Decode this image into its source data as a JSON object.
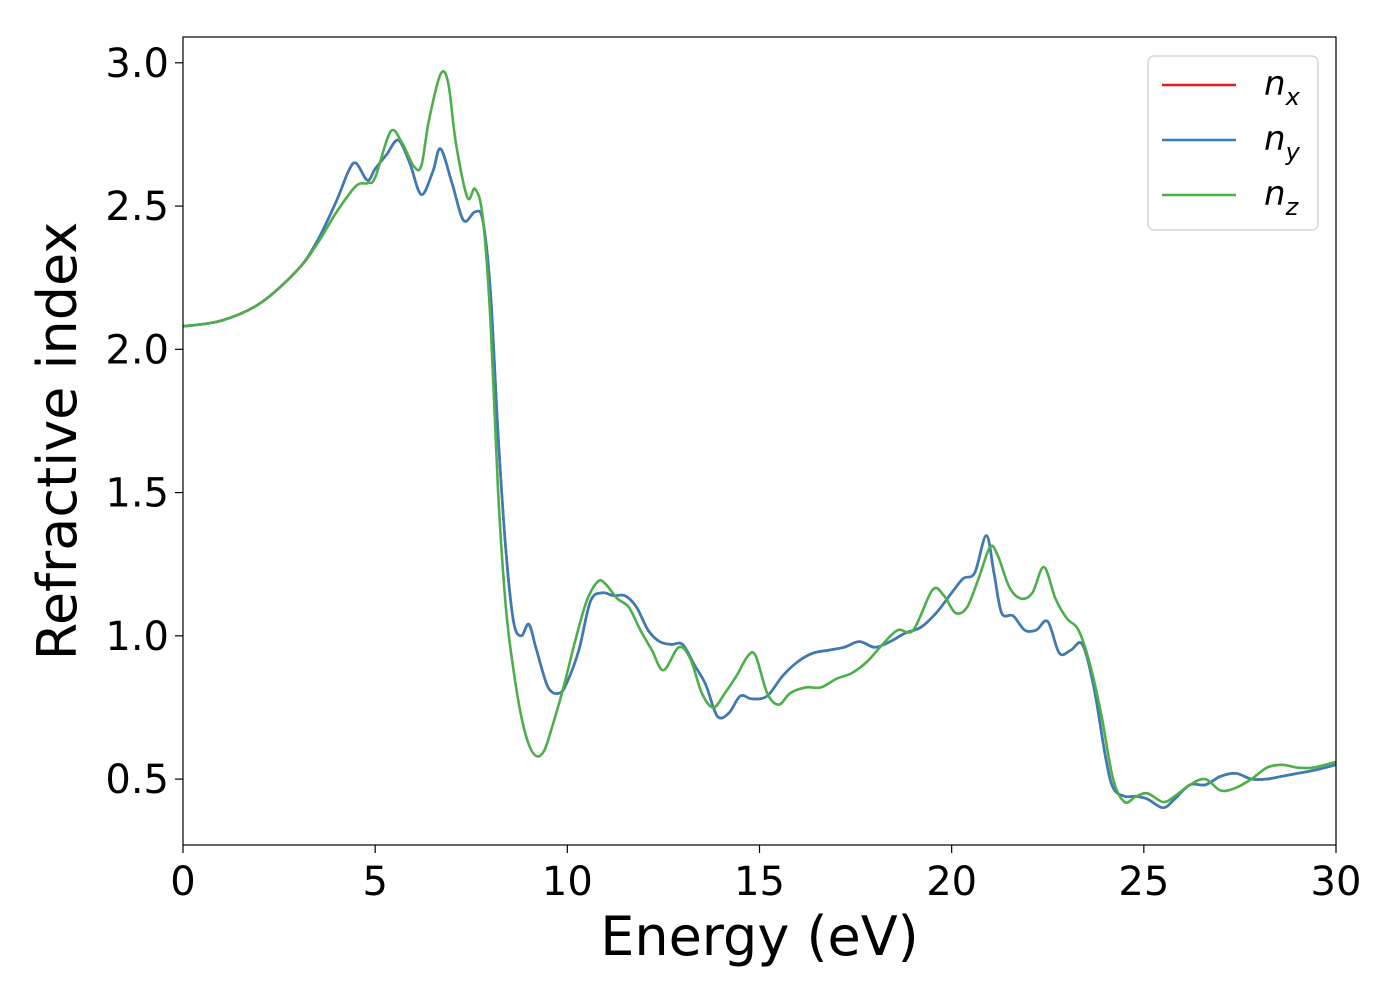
{
  "chart_data": {
    "type": "line",
    "title": "",
    "xlabel": "Energy (eV)",
    "ylabel": "Refractive index",
    "xlim": [
      0,
      30
    ],
    "ylim": [
      0.27,
      3.09
    ],
    "xticks": [
      0,
      5,
      10,
      15,
      20,
      25,
      30
    ],
    "yticks": [
      0.5,
      1.0,
      1.5,
      2.0,
      2.5,
      3.0
    ],
    "xtick_labels": [
      "0",
      "5",
      "10",
      "15",
      "20",
      "25",
      "30"
    ],
    "ytick_labels": [
      "0.5",
      "1.0",
      "1.5",
      "2.0",
      "2.5",
      "3.0"
    ],
    "grid": false,
    "legend_position": "top-right",
    "series": [
      {
        "name": "n_x",
        "legend_base": "n",
        "legend_sub": "x",
        "color": "#e41a1c",
        "x": [
          0,
          1,
          2,
          3,
          3.5,
          4,
          4.3,
          4.5,
          4.8,
          5,
          5.3,
          5.6,
          5.9,
          6.2,
          6.5,
          6.7,
          7,
          7.3,
          7.6,
          7.8,
          8,
          8.2,
          8.4,
          8.6,
          8.8,
          9,
          9.2,
          9.5,
          9.8,
          10,
          10.3,
          10.6,
          10.9,
          11.2,
          11.5,
          11.8,
          12.1,
          12.4,
          12.7,
          13,
          13.3,
          13.6,
          13.9,
          14.2,
          14.5,
          14.8,
          15.2,
          15.6,
          16,
          16.4,
          16.8,
          17.2,
          17.6,
          18,
          18.4,
          18.8,
          19.2,
          19.6,
          20,
          20.3,
          20.6,
          20.9,
          21.1,
          21.3,
          21.6,
          21.9,
          22.2,
          22.5,
          22.8,
          23.1,
          23.4,
          23.7,
          24,
          24.2,
          24.5,
          24.8,
          25.1,
          25.5,
          25.8,
          26.2,
          26.6,
          27,
          27.4,
          27.8,
          28.2,
          28.6,
          29,
          29.4,
          30
        ],
        "y": [
          2.08,
          2.1,
          2.16,
          2.28,
          2.38,
          2.52,
          2.62,
          2.65,
          2.59,
          2.63,
          2.68,
          2.73,
          2.65,
          2.54,
          2.62,
          2.7,
          2.58,
          2.45,
          2.48,
          2.45,
          2.2,
          1.7,
          1.3,
          1.05,
          1.0,
          1.04,
          0.95,
          0.82,
          0.8,
          0.84,
          0.95,
          1.12,
          1.15,
          1.14,
          1.14,
          1.1,
          1.02,
          0.98,
          0.97,
          0.97,
          0.9,
          0.83,
          0.72,
          0.73,
          0.79,
          0.78,
          0.79,
          0.86,
          0.91,
          0.94,
          0.95,
          0.96,
          0.98,
          0.96,
          0.98,
          1.01,
          1.03,
          1.08,
          1.15,
          1.2,
          1.22,
          1.35,
          1.22,
          1.08,
          1.07,
          1.02,
          1.02,
          1.05,
          0.94,
          0.95,
          0.97,
          0.82,
          0.58,
          0.47,
          0.44,
          0.44,
          0.43,
          0.4,
          0.43,
          0.48,
          0.48,
          0.51,
          0.52,
          0.5,
          0.5,
          0.51,
          0.52,
          0.53,
          0.55
        ]
      },
      {
        "name": "n_y",
        "legend_base": "n",
        "legend_sub": "y",
        "color": "#377eb8",
        "x": [
          0,
          1,
          2,
          3,
          3.5,
          4,
          4.3,
          4.5,
          4.8,
          5,
          5.3,
          5.6,
          5.9,
          6.2,
          6.5,
          6.7,
          7,
          7.3,
          7.6,
          7.8,
          8,
          8.2,
          8.4,
          8.6,
          8.8,
          9,
          9.2,
          9.5,
          9.8,
          10,
          10.3,
          10.6,
          10.9,
          11.2,
          11.5,
          11.8,
          12.1,
          12.4,
          12.7,
          13,
          13.3,
          13.6,
          13.9,
          14.2,
          14.5,
          14.8,
          15.2,
          15.6,
          16,
          16.4,
          16.8,
          17.2,
          17.6,
          18,
          18.4,
          18.8,
          19.2,
          19.6,
          20,
          20.3,
          20.6,
          20.9,
          21.1,
          21.3,
          21.6,
          21.9,
          22.2,
          22.5,
          22.8,
          23.1,
          23.4,
          23.7,
          24,
          24.2,
          24.5,
          24.8,
          25.1,
          25.5,
          25.8,
          26.2,
          26.6,
          27,
          27.4,
          27.8,
          28.2,
          28.6,
          29,
          29.4,
          30
        ],
        "y": [
          2.08,
          2.1,
          2.16,
          2.28,
          2.38,
          2.52,
          2.62,
          2.65,
          2.59,
          2.63,
          2.68,
          2.73,
          2.65,
          2.54,
          2.62,
          2.7,
          2.58,
          2.45,
          2.48,
          2.45,
          2.2,
          1.7,
          1.3,
          1.05,
          1.0,
          1.04,
          0.95,
          0.82,
          0.8,
          0.84,
          0.95,
          1.12,
          1.15,
          1.14,
          1.14,
          1.1,
          1.02,
          0.98,
          0.97,
          0.97,
          0.9,
          0.83,
          0.72,
          0.73,
          0.79,
          0.78,
          0.79,
          0.86,
          0.91,
          0.94,
          0.95,
          0.96,
          0.98,
          0.96,
          0.98,
          1.01,
          1.03,
          1.08,
          1.15,
          1.2,
          1.22,
          1.35,
          1.22,
          1.08,
          1.07,
          1.02,
          1.02,
          1.05,
          0.94,
          0.95,
          0.97,
          0.82,
          0.58,
          0.47,
          0.44,
          0.44,
          0.43,
          0.4,
          0.43,
          0.48,
          0.48,
          0.51,
          0.52,
          0.5,
          0.5,
          0.51,
          0.52,
          0.53,
          0.55
        ]
      },
      {
        "name": "n_z",
        "legend_base": "n",
        "legend_sub": "z",
        "color": "#4daf4a",
        "x": [
          0,
          1,
          2,
          3,
          3.5,
          4,
          4.5,
          4.8,
          5,
          5.4,
          5.7,
          6,
          6.2,
          6.4,
          6.7,
          6.9,
          7.1,
          7.4,
          7.6,
          7.8,
          8,
          8.2,
          8.4,
          8.6,
          8.8,
          9,
          9.2,
          9.4,
          9.6,
          9.9,
          10.2,
          10.5,
          10.8,
          11,
          11.3,
          11.6,
          11.9,
          12.2,
          12.5,
          12.9,
          13.2,
          13.5,
          13.8,
          14.1,
          14.4,
          14.7,
          14.9,
          15.2,
          15.5,
          15.8,
          16.2,
          16.6,
          17,
          17.4,
          17.8,
          18.2,
          18.6,
          19,
          19.5,
          19.8,
          20.1,
          20.4,
          20.7,
          21,
          21.2,
          21.5,
          21.8,
          22.1,
          22.4,
          22.7,
          23,
          23.3,
          23.6,
          23.9,
          24.2,
          24.5,
          24.8,
          25.1,
          25.5,
          25.8,
          26.2,
          26.6,
          27,
          27.4,
          27.8,
          28.2,
          28.6,
          29,
          29.4,
          30
        ],
        "y": [
          2.08,
          2.1,
          2.16,
          2.28,
          2.37,
          2.48,
          2.57,
          2.58,
          2.6,
          2.76,
          2.72,
          2.64,
          2.64,
          2.8,
          2.96,
          2.93,
          2.72,
          2.53,
          2.56,
          2.46,
          2.1,
          1.5,
          1.1,
          0.88,
          0.72,
          0.62,
          0.58,
          0.6,
          0.68,
          0.82,
          0.98,
          1.12,
          1.19,
          1.18,
          1.13,
          1.1,
          1.02,
          0.95,
          0.88,
          0.96,
          0.92,
          0.8,
          0.75,
          0.8,
          0.86,
          0.93,
          0.93,
          0.8,
          0.76,
          0.8,
          0.82,
          0.82,
          0.85,
          0.87,
          0.91,
          0.97,
          1.02,
          1.02,
          1.16,
          1.14,
          1.08,
          1.1,
          1.2,
          1.31,
          1.28,
          1.17,
          1.13,
          1.15,
          1.24,
          1.13,
          1.06,
          1.02,
          0.9,
          0.72,
          0.5,
          0.42,
          0.44,
          0.45,
          0.42,
          0.44,
          0.48,
          0.5,
          0.46,
          0.47,
          0.5,
          0.54,
          0.55,
          0.54,
          0.54,
          0.56
        ]
      }
    ]
  }
}
